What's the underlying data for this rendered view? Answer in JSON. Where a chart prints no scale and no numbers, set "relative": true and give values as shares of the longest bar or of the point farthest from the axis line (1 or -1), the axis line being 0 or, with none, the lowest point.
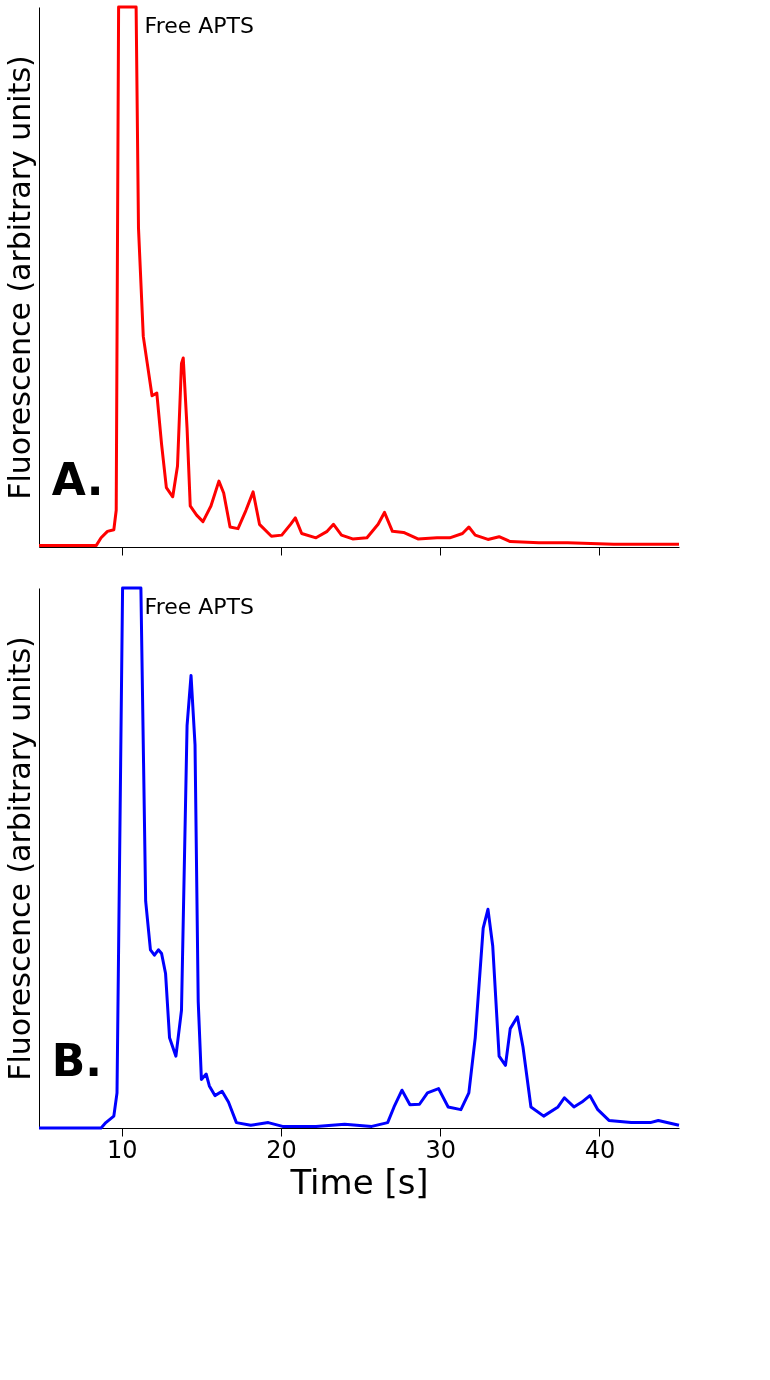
{
  "chart_data": [
    {
      "type": "line",
      "relative": true,
      "ylabel": "Fluorescence (arbitrary units)",
      "xlim": [
        4.8,
        45
      ],
      "xticks": [
        10,
        20,
        30,
        40
      ],
      "tick_labels": false,
      "grid": false,
      "marker": "none",
      "line_style": "solid",
      "annotations": [
        "Free APTS",
        "A."
      ],
      "series": [
        {
          "color": "#ff0000",
          "x": [
            4.8,
            8.4,
            8.7,
            9.1,
            9.5,
            9.65,
            9.8,
            10.9,
            11.05,
            11.35,
            11.6,
            11.9,
            12.2,
            12.5,
            12.8,
            13.2,
            13.5,
            13.75,
            13.86,
            14.1,
            14.3,
            14.7,
            15.1,
            15.6,
            16.1,
            16.4,
            16.8,
            17.3,
            17.8,
            18.25,
            18.65,
            19.4,
            20.05,
            20.6,
            20.9,
            21.3,
            22.2,
            22.9,
            23.3,
            23.8,
            24.5,
            25.4,
            26.1,
            26.5,
            27.0,
            27.7,
            28.6,
            29.8,
            30.6,
            31.4,
            31.8,
            32.2,
            33.0,
            33.7,
            34.4,
            36.2,
            38.0,
            40.9,
            45
          ],
          "values": [
            0.003,
            0.003,
            0.017,
            0.029,
            0.032,
            0.068,
            1,
            1,
            0.59,
            0.39,
            0.34,
            0.28,
            0.285,
            0.19,
            0.11,
            0.093,
            0.15,
            0.34,
            0.35,
            0.22,
            0.076,
            0.059,
            0.047,
            0.076,
            0.122,
            0.1,
            0.037,
            0.034,
            0.068,
            0.102,
            0.042,
            0.02,
            0.022,
            0.042,
            0.054,
            0.025,
            0.017,
            0.029,
            0.042,
            0.022,
            0.015,
            0.017,
            0.042,
            0.064,
            0.029,
            0.027,
            0.015,
            0.017,
            0.017,
            0.025,
            0.037,
            0.022,
            0.014,
            0.019,
            0.01,
            0.008,
            0.008,
            0.005,
            0.005
          ]
        }
      ]
    },
    {
      "type": "line",
      "relative": true,
      "ylabel": "Fluorescence (arbitrary units)",
      "xlabel": "Time [s]",
      "xlim": [
        4.8,
        45
      ],
      "xticks": [
        10,
        20,
        30,
        40
      ],
      "tick_labels": "x",
      "grid": false,
      "marker": "none",
      "line_style": "solid",
      "annotations": [
        "Free APTS",
        "B."
      ],
      "series": [
        {
          "color": "#0000ff",
          "x": [
            4.8,
            8.7,
            9.0,
            9.5,
            9.7,
            10.05,
            11.2,
            11.5,
            11.8,
            12.05,
            12.3,
            12.5,
            12.75,
            13.0,
            13.4,
            13.75,
            14.1,
            14.35,
            14.6,
            14.8,
            15.0,
            15.3,
            15.5,
            15.85,
            16.3,
            16.7,
            17.2,
            18.1,
            19.2,
            20.1,
            22.2,
            24.0,
            25.7,
            26.7,
            27.1,
            27.6,
            28.1,
            28.7,
            29.2,
            29.9,
            30.5,
            31.3,
            31.8,
            32.2,
            32.7,
            33.0,
            33.3,
            33.7,
            34.1,
            34.4,
            34.85,
            35.2,
            35.7,
            36.5,
            37.4,
            37.8,
            38.4,
            38.9,
            39.4,
            39.9,
            40.6,
            42.0,
            43.2,
            43.7,
            45
          ],
          "values": [
            0,
            0,
            0.01,
            0.022,
            0.065,
            1,
            1,
            0.42,
            0.33,
            0.32,
            0.33,
            0.323,
            0.286,
            0.167,
            0.133,
            0.218,
            0.745,
            0.838,
            0.71,
            0.235,
            0.09,
            0.1,
            0.078,
            0.06,
            0.068,
            0.048,
            0.01,
            0.005,
            0.01,
            0.003,
            0.003,
            0.007,
            0.003,
            0.01,
            0.039,
            0.07,
            0.043,
            0.044,
            0.065,
            0.073,
            0.039,
            0.034,
            0.065,
            0.167,
            0.37,
            0.405,
            0.337,
            0.133,
            0.116,
            0.184,
            0.206,
            0.15,
            0.039,
            0.022,
            0.039,
            0.056,
            0.039,
            0.048,
            0.06,
            0.034,
            0.014,
            0.01,
            0.01,
            0.014,
            0.005
          ]
        }
      ]
    }
  ]
}
